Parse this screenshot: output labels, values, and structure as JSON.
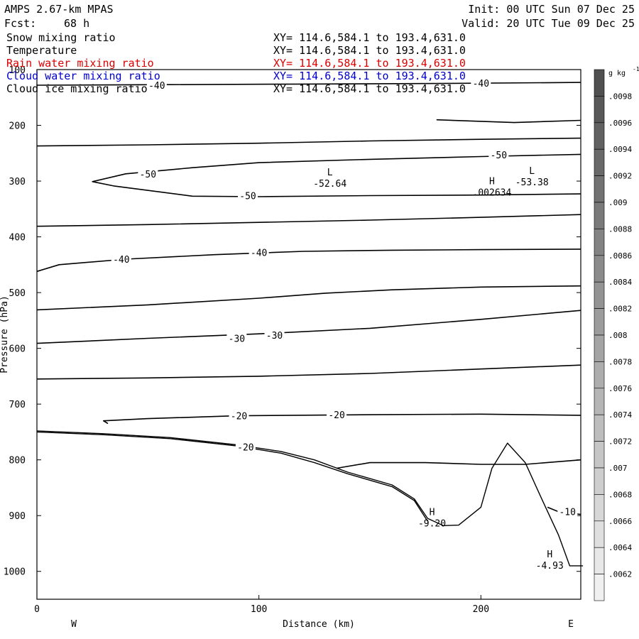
{
  "header": {
    "model": "AMPS 2.67-km MPAS",
    "forecast_label": "Fcst:",
    "forecast_hours": "68 h",
    "init": "Init: 00 UTC Sun 07 Dec 25",
    "valid": "Valid: 20 UTC Tue 09 Dec 25"
  },
  "fields": [
    {
      "name": "Snow mixing ratio",
      "xy": "XY= 114.6,584.1 to 193.4,631.0",
      "color": "#000000"
    },
    {
      "name": "Temperature",
      "xy": "XY= 114.6,584.1 to 193.4,631.0",
      "color": "#000000"
    },
    {
      "name": "Rain water mixing ratio",
      "xy": "XY= 114.6,584.1 to 193.4,631.0",
      "color": "#dd0000"
    },
    {
      "name": "Cloud water mixing ratio",
      "xy": "XY= 114.6,584.1 to 193.4,631.0",
      "color": "#0000cc"
    },
    {
      "name": "Cloud ice mixing ratio",
      "xy": "XY= 114.6,584.1 to 193.4,631.0",
      "color": "#000000"
    }
  ],
  "chart_data": {
    "type": "contour",
    "xlabel": "Distance (km)",
    "ylabel": "Pressure (hPa)",
    "xlim": [
      0,
      245
    ],
    "ylim": [
      1050,
      100
    ],
    "x_ticks": [
      0,
      100,
      200
    ],
    "y_ticks": [
      100,
      200,
      300,
      400,
      500,
      600,
      700,
      800,
      900,
      1000
    ],
    "direction_labels": {
      "left": "W",
      "right": "E"
    },
    "colorbar": {
      "units": "g kg",
      "units_exp": "-1",
      "labels": [
        ".0098",
        ".0096",
        ".0094",
        ".0092",
        ".009",
        ".0088",
        ".0086",
        ".0084",
        ".0082",
        ".008",
        ".0078",
        ".0076",
        ".0074",
        ".0072",
        ".007",
        ".0068",
        ".0066",
        ".0064",
        ".0062"
      ]
    },
    "temperature_contours": [
      {
        "points": [
          [
            0,
            128
          ],
          [
            60,
            127
          ],
          [
            120,
            126
          ],
          [
            180,
            125
          ],
          [
            245,
            123
          ]
        ]
      },
      {
        "points": [
          [
            0,
            237
          ],
          [
            50,
            235
          ],
          [
            100,
            232
          ],
          [
            150,
            228
          ],
          [
            200,
            225
          ],
          [
            245,
            223
          ]
        ]
      },
      {
        "points": [
          [
            0,
            381
          ],
          [
            50,
            378
          ],
          [
            100,
            374
          ],
          [
            150,
            370
          ],
          [
            200,
            365
          ],
          [
            245,
            360
          ]
        ]
      },
      {
        "points": [
          [
            0,
            462
          ],
          [
            10,
            450
          ],
          [
            40,
            440
          ],
          [
            80,
            432
          ],
          [
            120,
            426
          ],
          [
            160,
            424
          ],
          [
            200,
            423
          ],
          [
            245,
            422
          ]
        ]
      },
      {
        "points": [
          [
            0,
            531
          ],
          [
            50,
            522
          ],
          [
            100,
            510
          ],
          [
            130,
            501
          ],
          [
            160,
            495
          ],
          [
            200,
            490
          ],
          [
            245,
            488
          ]
        ]
      },
      {
        "points": [
          [
            0,
            591
          ],
          [
            50,
            582
          ],
          [
            100,
            574
          ],
          [
            150,
            564
          ],
          [
            200,
            548
          ],
          [
            245,
            532
          ]
        ]
      },
      {
        "points": [
          [
            0,
            655
          ],
          [
            50,
            653
          ],
          [
            100,
            650
          ],
          [
            150,
            645
          ],
          [
            200,
            637
          ],
          [
            245,
            630
          ]
        ]
      },
      {
        "points": [
          [
            135,
            815
          ],
          [
            150,
            805
          ],
          [
            175,
            805
          ],
          [
            200,
            808
          ],
          [
            220,
            808
          ],
          [
            245,
            800
          ]
        ]
      },
      {
        "points": [
          [
            230,
            885
          ],
          [
            235,
            893
          ],
          [
            245,
            898
          ]
        ]
      },
      {
        "points": [
          [
            180,
            190
          ],
          [
            215,
            195
          ],
          [
            245,
            191
          ]
        ]
      },
      {
        "points": [
          [
            245,
            252
          ],
          [
            200,
            256
          ],
          [
            150,
            261
          ],
          [
            100,
            267
          ],
          [
            70,
            276
          ],
          [
            40,
            287
          ],
          [
            25,
            301
          ],
          [
            35,
            309
          ],
          [
            70,
            327
          ],
          [
            100,
            328
          ],
          [
            150,
            326
          ],
          [
            200,
            325
          ],
          [
            245,
            323
          ]
        ]
      },
      {
        "points": [
          [
            32,
            735
          ],
          [
            30,
            730
          ],
          [
            50,
            726
          ],
          [
            90,
            721
          ],
          [
            150,
            719
          ],
          [
            200,
            718
          ],
          [
            245,
            720
          ]
        ]
      }
    ],
    "terrain_lines": [
      {
        "points": [
          [
            0,
            748
          ],
          [
            30,
            753
          ],
          [
            60,
            760
          ],
          [
            90,
            773
          ],
          [
            110,
            785
          ],
          [
            125,
            800
          ],
          [
            140,
            822
          ],
          [
            160,
            845
          ],
          [
            170,
            870
          ],
          [
            176,
            905
          ],
          [
            183,
            918
          ],
          [
            190,
            917
          ],
          [
            200,
            885
          ],
          [
            205,
            815
          ],
          [
            212,
            770
          ],
          [
            220,
            805
          ],
          [
            228,
            875
          ],
          [
            235,
            935
          ],
          [
            240,
            990
          ],
          [
            246,
            990
          ]
        ]
      },
      {
        "points": [
          [
            0,
            750
          ],
          [
            30,
            755
          ],
          [
            60,
            762
          ],
          [
            90,
            775
          ],
          [
            110,
            788
          ],
          [
            125,
            805
          ],
          [
            140,
            825
          ],
          [
            160,
            848
          ],
          [
            170,
            873
          ],
          [
            176,
            910
          ]
        ]
      }
    ],
    "contour_labels": [
      {
        "text": "-40",
        "x": 54,
        "p": 128
      },
      {
        "text": "-40",
        "x": 200,
        "p": 124
      },
      {
        "text": "-50",
        "x": 50,
        "p": 287
      },
      {
        "text": "-50",
        "x": 208,
        "p": 253
      },
      {
        "text": "-50",
        "x": 95,
        "p": 326
      },
      {
        "text": "-40",
        "x": 38,
        "p": 440
      },
      {
        "text": "-40",
        "x": 100,
        "p": 428
      },
      {
        "text": "-30",
        "x": 90,
        "p": 582
      },
      {
        "text": "-30",
        "x": 107,
        "p": 576
      },
      {
        "text": "-20",
        "x": 91,
        "p": 721
      },
      {
        "text": "-20",
        "x": 135,
        "p": 719
      },
      {
        "text": "-20",
        "x": 94,
        "p": 777
      },
      {
        "text": "-10",
        "x": 239,
        "p": 893
      }
    ],
    "extrema": [
      {
        "letter": "L",
        "value": "-52.64",
        "x": 132,
        "p": 295
      },
      {
        "letter": "L",
        "value": "-53.38",
        "x": 223,
        "p": 292
      },
      {
        "letter": "H",
        "value": ".002634",
        "x": 205,
        "p": 311
      },
      {
        "letter": "H",
        "value": "-9.20",
        "x": 178,
        "p": 904
      },
      {
        "letter": "H",
        "value": "-4.93",
        "x": 231,
        "p": 980
      }
    ]
  }
}
